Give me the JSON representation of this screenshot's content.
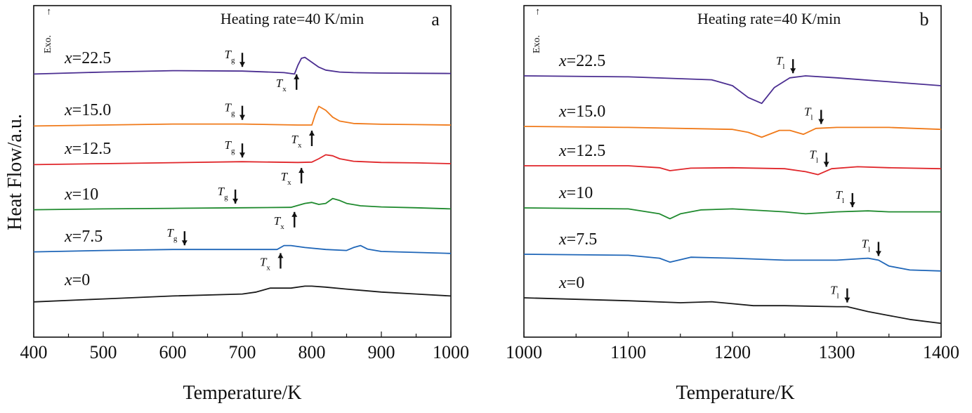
{
  "figure": {
    "ylabel": "Heat Flow/a.u.",
    "exo_label": "Exo."
  },
  "chart_data": [
    {
      "type": "line",
      "panel_label": "a",
      "title": "Heating rate=40 K/min",
      "xlabel": "Temperature/K",
      "ylabel": "Heat Flow/a.u.",
      "xlim": [
        400,
        1000
      ],
      "xticks": [
        400,
        500,
        600,
        700,
        800,
        900,
        1000
      ],
      "y_units": "offset heat flow (a.u.), top = exothermic",
      "grid": false,
      "series": [
        {
          "label_x": "x",
          "label_val": "=22.5",
          "color": "#4b2e91",
          "x": [
            400,
            500,
            600,
            700,
            760,
            775,
            780,
            785,
            790,
            800,
            810,
            820,
            840,
            860,
            900,
            950,
            1000
          ],
          "y": [
            -0.05,
            0.05,
            0.12,
            0.1,
            0.02,
            -0.05,
            0.4,
            0.75,
            0.8,
            0.55,
            0.3,
            0.15,
            0.05,
            0.02,
            0,
            -0.01,
            -0.02
          ]
        },
        {
          "label_x": "x",
          "label_val": "=15.0",
          "color": "#f07a1a",
          "x": [
            400,
            500,
            600,
            700,
            780,
            800,
            805,
            810,
            820,
            830,
            840,
            860,
            900,
            950,
            1000
          ],
          "y": [
            -0.05,
            0,
            0.05,
            0.05,
            0,
            0,
            0.55,
            0.95,
            0.75,
            0.4,
            0.2,
            0.08,
            0.04,
            0.02,
            0
          ]
        },
        {
          "label_x": "x",
          "label_val": "=12.5",
          "color": "#e0262a",
          "x": [
            400,
            500,
            600,
            700,
            780,
            800,
            810,
            820,
            830,
            840,
            860,
            900,
            950,
            1000
          ],
          "y": [
            -0.05,
            0,
            0.05,
            0.1,
            0.06,
            0.08,
            0.25,
            0.45,
            0.4,
            0.25,
            0.12,
            0.06,
            0.04,
            0
          ]
        },
        {
          "label_x": "x",
          "label_val": "=10",
          "color": "#1f8a2e",
          "x": [
            400,
            500,
            600,
            700,
            770,
            790,
            800,
            810,
            820,
            830,
            840,
            850,
            870,
            900,
            950,
            1000
          ],
          "y": [
            -0.02,
            0.02,
            0.05,
            0.08,
            0.1,
            0.3,
            0.35,
            0.25,
            0.3,
            0.55,
            0.45,
            0.3,
            0.18,
            0.12,
            0.08,
            0.02
          ]
        },
        {
          "label_x": "x",
          "label_val": "=7.5",
          "color": "#1f66b8",
          "x": [
            400,
            500,
            600,
            700,
            750,
            760,
            770,
            790,
            820,
            850,
            860,
            870,
            880,
            900,
            950,
            1000
          ],
          "y": [
            -0.02,
            0.05,
            0.1,
            0.1,
            0.1,
            0.3,
            0.3,
            0.2,
            0.1,
            0.05,
            0.2,
            0.3,
            0.12,
            0,
            -0.05,
            -0.1
          ]
        },
        {
          "label_x": "x",
          "label_val": "=0",
          "color": "#1a1a1a",
          "x": [
            400,
            500,
            600,
            700,
            720,
            740,
            770,
            790,
            800,
            820,
            850,
            900,
            950,
            1000
          ],
          "y": [
            -0.35,
            -0.2,
            -0.05,
            0.05,
            0.15,
            0.35,
            0.35,
            0.45,
            0.45,
            0.4,
            0.3,
            0.15,
            0.05,
            -0.05
          ]
        }
      ],
      "annotations": [
        {
          "series": "=22.5",
          "type": "Tg",
          "symbol": "T",
          "sub": "g",
          "x": 700,
          "direction": "down"
        },
        {
          "series": "=22.5",
          "type": "Tx",
          "symbol": "T",
          "sub": "x",
          "x": 778,
          "direction": "up"
        },
        {
          "series": "=15.0",
          "type": "Tg",
          "symbol": "T",
          "sub": "g",
          "x": 700,
          "direction": "down"
        },
        {
          "series": "=15.0",
          "type": "Tx",
          "symbol": "T",
          "sub": "x",
          "x": 800,
          "direction": "up"
        },
        {
          "series": "=12.5",
          "type": "Tg",
          "symbol": "T",
          "sub": "g",
          "x": 700,
          "direction": "down"
        },
        {
          "series": "=12.5",
          "type": "Tx",
          "symbol": "T",
          "sub": "x",
          "x": 785,
          "direction": "up"
        },
        {
          "series": "=10",
          "type": "Tg",
          "symbol": "T",
          "sub": "g",
          "x": 690,
          "direction": "down"
        },
        {
          "series": "=10",
          "type": "Tx",
          "symbol": "T",
          "sub": "x",
          "x": 775,
          "direction": "up"
        },
        {
          "series": "=7.5",
          "type": "Tg",
          "symbol": "T",
          "sub": "g",
          "x": 617,
          "direction": "down"
        },
        {
          "series": "=7.5",
          "type": "Tx",
          "symbol": "T",
          "sub": "x",
          "x": 755,
          "direction": "up"
        }
      ]
    },
    {
      "type": "line",
      "panel_label": "b",
      "title": "Heating rate=40 K/min",
      "xlabel": "Temperature/K",
      "ylabel": "Heat Flow/a.u.",
      "xlim": [
        1000,
        1400
      ],
      "xticks": [
        1000,
        1100,
        1200,
        1300,
        1400
      ],
      "y_units": "offset heat flow (a.u.), top = exothermic",
      "grid": false,
      "series": [
        {
          "label_x": "x",
          "label_val": "=22.5",
          "color": "#4b2e91",
          "x": [
            1000,
            1100,
            1180,
            1200,
            1215,
            1228,
            1240,
            1255,
            1270,
            1300,
            1350,
            1400
          ],
          "y": [
            0,
            -0.05,
            -0.2,
            -0.5,
            -1.1,
            -1.4,
            -0.6,
            -0.1,
            0,
            -0.1,
            -0.3,
            -0.5
          ]
        },
        {
          "label_x": "x",
          "label_val": "=15.0",
          "color": "#f07a1a",
          "x": [
            1000,
            1100,
            1200,
            1215,
            1228,
            1245,
            1255,
            1268,
            1280,
            1300,
            1350,
            1400
          ],
          "y": [
            0,
            -0.05,
            -0.15,
            -0.3,
            -0.55,
            -0.2,
            -0.2,
            -0.4,
            -0.1,
            -0.05,
            -0.05,
            -0.15
          ]
        },
        {
          "label_x": "x",
          "label_val": "=12.5",
          "color": "#e0262a",
          "x": [
            1000,
            1100,
            1130,
            1140,
            1160,
            1200,
            1250,
            1270,
            1282,
            1295,
            1320,
            1350,
            1400
          ],
          "y": [
            0,
            0,
            -0.1,
            -0.25,
            -0.12,
            -0.1,
            -0.15,
            -0.3,
            -0.45,
            -0.15,
            -0.05,
            -0.1,
            -0.15
          ]
        },
        {
          "label_x": "x",
          "label_val": "=10",
          "color": "#1f8a2e",
          "x": [
            1000,
            1100,
            1130,
            1140,
            1150,
            1170,
            1200,
            1250,
            1270,
            1300,
            1330,
            1350,
            1400
          ],
          "y": [
            0,
            -0.05,
            -0.3,
            -0.55,
            -0.3,
            -0.1,
            -0.05,
            -0.2,
            -0.3,
            -0.2,
            -0.15,
            -0.2,
            -0.2
          ]
        },
        {
          "label_x": "x",
          "label_val": "=7.5",
          "color": "#1f66b8",
          "x": [
            1000,
            1100,
            1130,
            1140,
            1160,
            1200,
            1250,
            1300,
            1330,
            1340,
            1350,
            1370,
            1400
          ],
          "y": [
            0,
            -0.05,
            -0.2,
            -0.4,
            -0.15,
            -0.2,
            -0.3,
            -0.3,
            -0.2,
            -0.3,
            -0.6,
            -0.8,
            -0.85
          ]
        },
        {
          "label_x": "x",
          "label_val": "=0",
          "color": "#1a1a1a",
          "x": [
            1000,
            1100,
            1150,
            1180,
            1200,
            1220,
            1250,
            1300,
            1310,
            1330,
            1350,
            1370,
            1400
          ],
          "y": [
            0,
            -0.15,
            -0.25,
            -0.2,
            -0.3,
            -0.4,
            -0.4,
            -0.45,
            -0.45,
            -0.7,
            -0.9,
            -1.1,
            -1.3
          ]
        }
      ],
      "annotations": [
        {
          "series": "=22.5",
          "type": "Tl",
          "symbol": "T",
          "sub": "l",
          "x": 1258,
          "direction": "down"
        },
        {
          "series": "=15.0",
          "type": "Tl",
          "symbol": "T",
          "sub": "l",
          "x": 1285,
          "direction": "down"
        },
        {
          "series": "=12.5",
          "type": "Tl",
          "symbol": "T",
          "sub": "l",
          "x": 1290,
          "direction": "down"
        },
        {
          "series": "=10",
          "type": "Tl",
          "symbol": "T",
          "sub": "l",
          "x": 1315,
          "direction": "down"
        },
        {
          "series": "=7.5",
          "type": "Tl",
          "symbol": "T",
          "sub": "l",
          "x": 1340,
          "direction": "down"
        },
        {
          "series": "=0",
          "type": "Tl",
          "symbol": "T",
          "sub": "l",
          "x": 1310,
          "direction": "down"
        }
      ]
    }
  ]
}
